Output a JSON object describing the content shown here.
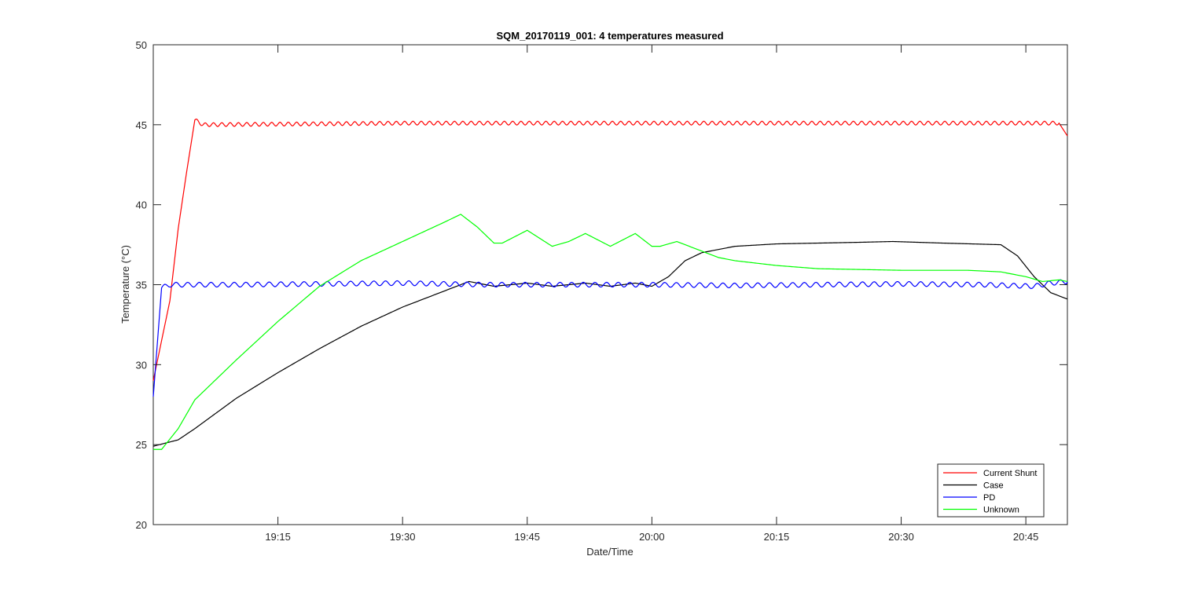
{
  "chart_data": {
    "type": "line",
    "title": "SQM_20170119_001: 4 temperatures measured",
    "xlabel": "Date/Time",
    "ylabel": "Temperature (°C)",
    "xlim": [
      "19:00",
      "20:50"
    ],
    "ylim": [
      20,
      50
    ],
    "x_ticks": [
      "19:15",
      "19:30",
      "19:45",
      "20:00",
      "20:15",
      "20:30",
      "20:45"
    ],
    "y_ticks": [
      "20",
      "25",
      "30",
      "35",
      "40",
      "45",
      "50"
    ],
    "grid": false,
    "legend_position": "bottom-right",
    "series": [
      {
        "name": "Current Shunt",
        "color": "#ff0000",
        "oscillation": {
          "amplitude": 0.12,
          "period_min": 1.0
        },
        "points": [
          [
            "19:00",
            29.0
          ],
          [
            "19:02",
            34.0
          ],
          [
            "19:03",
            38.5
          ],
          [
            "19:04",
            42.0
          ],
          [
            "19:05",
            45.3
          ],
          [
            "19:06",
            45.0
          ],
          [
            "19:30",
            45.1
          ],
          [
            "20:00",
            45.1
          ],
          [
            "20:30",
            45.1
          ],
          [
            "20:49",
            45.1
          ],
          [
            "20:50",
            44.3
          ]
        ]
      },
      {
        "name": "Case",
        "color": "#000000",
        "points": [
          [
            "19:00",
            24.9
          ],
          [
            "19:03",
            25.3
          ],
          [
            "19:05",
            26.0
          ],
          [
            "19:10",
            27.9
          ],
          [
            "19:15",
            29.5
          ],
          [
            "19:20",
            31.0
          ],
          [
            "19:25",
            32.4
          ],
          [
            "19:30",
            33.6
          ],
          [
            "19:35",
            34.6
          ],
          [
            "19:38",
            35.2
          ],
          [
            "19:41",
            34.9
          ],
          [
            "19:45",
            35.1
          ],
          [
            "19:48",
            34.9
          ],
          [
            "19:52",
            35.1
          ],
          [
            "19:55",
            34.9
          ],
          [
            "19:58",
            35.1
          ],
          [
            "20:00",
            34.9
          ],
          [
            "20:02",
            35.5
          ],
          [
            "20:04",
            36.5
          ],
          [
            "20:06",
            37.0
          ],
          [
            "20:10",
            37.4
          ],
          [
            "20:15",
            37.55
          ],
          [
            "20:20",
            37.6
          ],
          [
            "20:25",
            37.65
          ],
          [
            "20:29",
            37.7
          ],
          [
            "20:35",
            37.6
          ],
          [
            "20:42",
            37.5
          ],
          [
            "20:44",
            36.8
          ],
          [
            "20:46",
            35.5
          ],
          [
            "20:48",
            34.5
          ],
          [
            "20:50",
            34.1
          ]
        ]
      },
      {
        "name": "PD",
        "color": "#0000ff",
        "oscillation": {
          "amplitude": 0.15,
          "period_min": 1.4
        },
        "points": [
          [
            "19:00",
            28.0
          ],
          [
            "19:01",
            34.8
          ],
          [
            "19:02",
            35.0
          ],
          [
            "19:10",
            35.0
          ],
          [
            "19:20",
            35.05
          ],
          [
            "19:30",
            35.1
          ],
          [
            "19:40",
            35.0
          ],
          [
            "19:50",
            35.0
          ],
          [
            "20:00",
            35.0
          ],
          [
            "20:10",
            34.95
          ],
          [
            "20:20",
            35.0
          ],
          [
            "20:30",
            35.05
          ],
          [
            "20:40",
            35.0
          ],
          [
            "20:46",
            34.9
          ],
          [
            "20:48",
            35.1
          ],
          [
            "20:50",
            35.2
          ]
        ]
      },
      {
        "name": "Unknown",
        "color": "#00ff00",
        "points": [
          [
            "19:00",
            24.7
          ],
          [
            "19:01",
            24.7
          ],
          [
            "19:03",
            26.0
          ],
          [
            "19:05",
            27.8
          ],
          [
            "19:10",
            30.3
          ],
          [
            "19:15",
            32.7
          ],
          [
            "19:20",
            34.9
          ],
          [
            "19:25",
            36.5
          ],
          [
            "19:30",
            37.7
          ],
          [
            "19:35",
            38.9
          ],
          [
            "19:37",
            39.4
          ],
          [
            "19:39",
            38.6
          ],
          [
            "19:41",
            37.6
          ],
          [
            "19:42",
            37.6
          ],
          [
            "19:45",
            38.4
          ],
          [
            "19:48",
            37.4
          ],
          [
            "19:50",
            37.7
          ],
          [
            "19:52",
            38.2
          ],
          [
            "19:55",
            37.4
          ],
          [
            "19:58",
            38.2
          ],
          [
            "20:00",
            37.4
          ],
          [
            "20:01",
            37.4
          ],
          [
            "20:03",
            37.7
          ],
          [
            "20:05",
            37.3
          ],
          [
            "20:08",
            36.7
          ],
          [
            "20:10",
            36.5
          ],
          [
            "20:15",
            36.2
          ],
          [
            "20:20",
            36.0
          ],
          [
            "20:30",
            35.9
          ],
          [
            "20:38",
            35.9
          ],
          [
            "20:42",
            35.8
          ],
          [
            "20:45",
            35.5
          ],
          [
            "20:47",
            35.2
          ],
          [
            "20:49",
            35.3
          ],
          [
            "20:50",
            35.2
          ]
        ]
      }
    ]
  }
}
